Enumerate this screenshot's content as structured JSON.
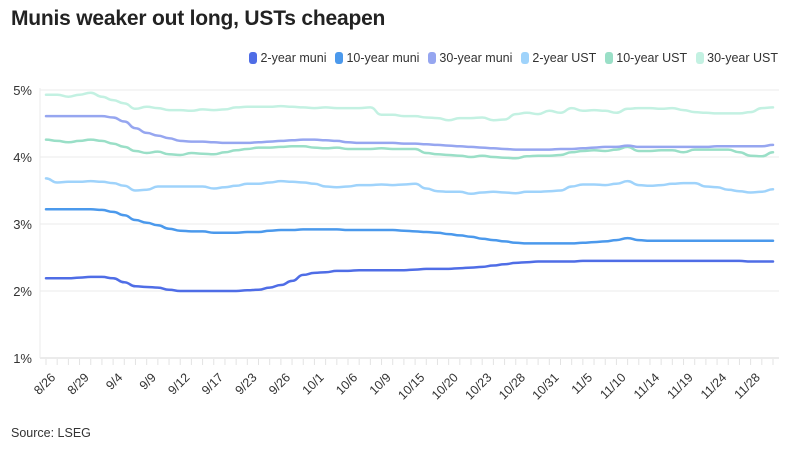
{
  "chart_data": {
    "type": "line",
    "title": "Munis weaker out long, USTs cheapen",
    "xlabel": "",
    "ylabel": "",
    "ylim": [
      1,
      5
    ],
    "yticks": [
      "1%",
      "2%",
      "3%",
      "4%",
      "5%"
    ],
    "ytick_values": [
      1,
      2,
      3,
      4,
      5
    ],
    "grid": true,
    "legend_position": "top-right",
    "x_tick_labels": [
      "8/26",
      "8/29",
      "9/4",
      "9/9",
      "9/12",
      "9/17",
      "9/23",
      "9/26",
      "10/1",
      "10/6",
      "10/9",
      "10/15",
      "10/20",
      "10/23",
      "10/28",
      "10/31",
      "11/5",
      "11/10",
      "11/14",
      "11/19",
      "11/24",
      "11/28"
    ],
    "points_per_label": 3,
    "series": [
      {
        "name": "2-year muni",
        "color": "#4f6de6",
        "values": [
          2.19,
          2.19,
          2.19,
          2.2,
          2.21,
          2.21,
          2.19,
          2.13,
          2.07,
          2.06,
          2.05,
          2.02,
          2.0,
          2.0,
          2.0,
          2.0,
          2.0,
          2.0,
          2.01,
          2.02,
          2.05,
          2.09,
          2.15,
          2.24,
          2.27,
          2.28,
          2.3,
          2.3,
          2.31,
          2.31,
          2.31,
          2.31,
          2.31,
          2.32,
          2.33,
          2.33,
          2.33,
          2.34,
          2.35,
          2.36,
          2.38,
          2.4,
          2.42,
          2.43,
          2.44,
          2.44,
          2.44,
          2.44,
          2.45,
          2.45,
          2.45,
          2.45,
          2.45,
          2.45,
          2.45,
          2.45,
          2.45,
          2.45,
          2.45,
          2.45,
          2.45,
          2.45,
          2.45,
          2.44,
          2.44,
          2.44
        ]
      },
      {
        "name": "10-year muni",
        "color": "#4b99ec",
        "values": [
          3.22,
          3.22,
          3.22,
          3.22,
          3.22,
          3.21,
          3.18,
          3.13,
          3.06,
          3.02,
          2.98,
          2.93,
          2.9,
          2.89,
          2.89,
          2.87,
          2.87,
          2.87,
          2.88,
          2.88,
          2.9,
          2.91,
          2.91,
          2.92,
          2.92,
          2.92,
          2.92,
          2.91,
          2.91,
          2.91,
          2.91,
          2.91,
          2.9,
          2.89,
          2.88,
          2.87,
          2.85,
          2.83,
          2.81,
          2.78,
          2.76,
          2.74,
          2.72,
          2.71,
          2.71,
          2.71,
          2.71,
          2.71,
          2.72,
          2.73,
          2.74,
          2.76,
          2.79,
          2.76,
          2.75,
          2.75,
          2.75,
          2.75,
          2.75,
          2.75,
          2.75,
          2.75,
          2.75,
          2.75,
          2.75,
          2.75
        ]
      },
      {
        "name": "30-year muni",
        "color": "#96a6f0",
        "values": [
          4.61,
          4.61,
          4.61,
          4.61,
          4.61,
          4.61,
          4.59,
          4.53,
          4.43,
          4.36,
          4.32,
          4.28,
          4.24,
          4.23,
          4.23,
          4.22,
          4.21,
          4.21,
          4.21,
          4.22,
          4.23,
          4.24,
          4.25,
          4.26,
          4.26,
          4.25,
          4.24,
          4.22,
          4.21,
          4.21,
          4.21,
          4.21,
          4.2,
          4.2,
          4.19,
          4.18,
          4.17,
          4.16,
          4.15,
          4.14,
          4.13,
          4.12,
          4.11,
          4.11,
          4.11,
          4.11,
          4.12,
          4.12,
          4.13,
          4.14,
          4.15,
          4.15,
          4.17,
          4.15,
          4.15,
          4.15,
          4.15,
          4.15,
          4.15,
          4.15,
          4.16,
          4.16,
          4.16,
          4.16,
          4.16,
          4.18
        ]
      },
      {
        "name": "2-year UST",
        "color": "#9fd3fb",
        "values": [
          3.68,
          3.62,
          3.63,
          3.63,
          3.64,
          3.63,
          3.61,
          3.57,
          3.5,
          3.51,
          3.56,
          3.56,
          3.56,
          3.56,
          3.56,
          3.53,
          3.55,
          3.57,
          3.6,
          3.6,
          3.62,
          3.64,
          3.63,
          3.62,
          3.6,
          3.56,
          3.55,
          3.56,
          3.58,
          3.58,
          3.59,
          3.58,
          3.59,
          3.6,
          3.53,
          3.49,
          3.48,
          3.48,
          3.45,
          3.47,
          3.48,
          3.47,
          3.46,
          3.48,
          3.48,
          3.49,
          3.5,
          3.56,
          3.59,
          3.59,
          3.58,
          3.6,
          3.64,
          3.58,
          3.57,
          3.58,
          3.6,
          3.61,
          3.61,
          3.56,
          3.55,
          3.51,
          3.49,
          3.47,
          3.48,
          3.52
        ]
      },
      {
        "name": "10-year UST",
        "color": "#9adfc7",
        "values": [
          4.26,
          4.24,
          4.22,
          4.24,
          4.26,
          4.24,
          4.2,
          4.15,
          4.09,
          4.06,
          4.08,
          4.04,
          4.03,
          4.06,
          4.05,
          4.04,
          4.07,
          4.1,
          4.12,
          4.14,
          4.14,
          4.15,
          4.16,
          4.16,
          4.14,
          4.13,
          4.14,
          4.12,
          4.12,
          4.12,
          4.13,
          4.12,
          4.12,
          4.12,
          4.06,
          4.04,
          4.03,
          4.02,
          4.0,
          4.02,
          4.0,
          3.99,
          3.98,
          4.01,
          4.02,
          4.02,
          4.03,
          4.07,
          4.09,
          4.1,
          4.09,
          4.11,
          4.15,
          4.09,
          4.09,
          4.1,
          4.1,
          4.07,
          4.11,
          4.11,
          4.11,
          4.11,
          4.07,
          4.02,
          4.01,
          4.07
        ]
      },
      {
        "name": "30-year UST",
        "color": "#c3f1e2",
        "values": [
          4.93,
          4.93,
          4.9,
          4.93,
          4.96,
          4.9,
          4.85,
          4.8,
          4.72,
          4.75,
          4.73,
          4.7,
          4.7,
          4.69,
          4.71,
          4.7,
          4.71,
          4.74,
          4.75,
          4.75,
          4.75,
          4.76,
          4.75,
          4.74,
          4.73,
          4.74,
          4.73,
          4.73,
          4.73,
          4.74,
          4.63,
          4.63,
          4.61,
          4.61,
          4.59,
          4.58,
          4.55,
          4.58,
          4.58,
          4.59,
          4.55,
          4.56,
          4.64,
          4.66,
          4.64,
          4.69,
          4.66,
          4.73,
          4.69,
          4.7,
          4.69,
          4.66,
          4.72,
          4.73,
          4.73,
          4.72,
          4.73,
          4.7,
          4.67,
          4.66,
          4.65,
          4.65,
          4.65,
          4.67,
          4.73,
          4.74
        ]
      }
    ],
    "source": "Source: LSEG"
  }
}
